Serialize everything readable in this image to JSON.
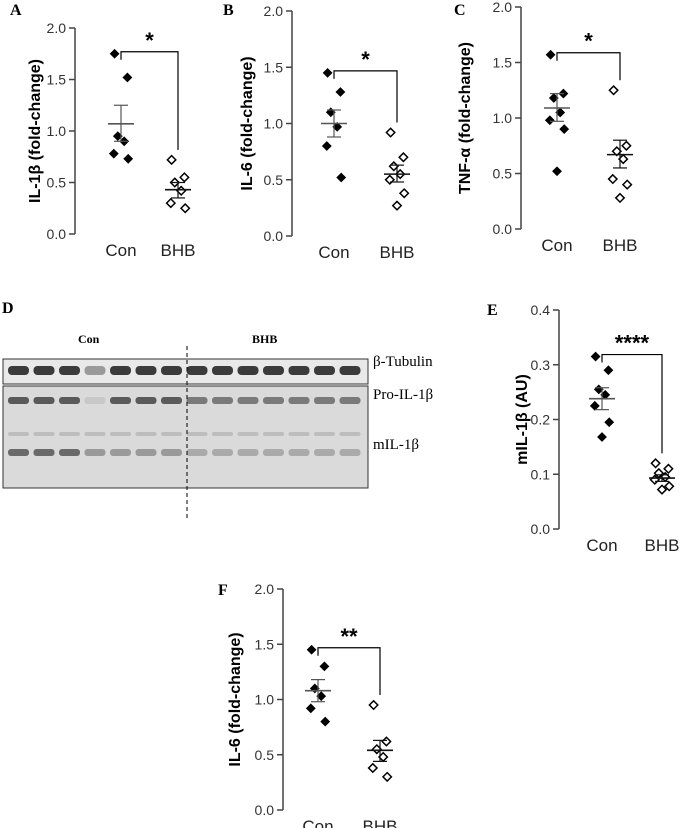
{
  "chart_data": [
    {
      "panel": "A",
      "type": "scatter",
      "ylabel": "IL-1β (fold-change)",
      "ylim": [
        0,
        2.0
      ],
      "yticks": [
        "0.0",
        "0.5",
        "1.0",
        "1.5",
        "2.0"
      ],
      "categories": [
        "Con",
        "BHB"
      ],
      "significance": "*",
      "series": [
        {
          "values": [
            1.75,
            1.52,
            0.95,
            0.9,
            0.78,
            0.73
          ],
          "mean": 1.07,
          "sem_low": 0.9,
          "sem_high": 1.25,
          "marker": "filled-diamond"
        },
        {
          "values": [
            0.72,
            0.55,
            0.5,
            0.42,
            0.3,
            0.25
          ],
          "mean": 0.43,
          "sem_low": 0.35,
          "sem_high": 0.5,
          "marker": "open-diamond"
        }
      ]
    },
    {
      "panel": "B",
      "type": "scatter",
      "ylabel": "IL-6 (fold-change)",
      "ylim": [
        0,
        2.0
      ],
      "yticks": [
        "0.0",
        "0.5",
        "1.0",
        "1.5",
        "2.0"
      ],
      "categories": [
        "Con",
        "BHB"
      ],
      "significance": "*",
      "series": [
        {
          "values": [
            1.45,
            1.28,
            1.1,
            0.97,
            0.8,
            0.52
          ],
          "mean": 1.0,
          "sem_low": 0.88,
          "sem_high": 1.12,
          "marker": "filled-diamond"
        },
        {
          "values": [
            0.92,
            0.7,
            0.62,
            0.55,
            0.5,
            0.38,
            0.27
          ],
          "mean": 0.55,
          "sem_low": 0.48,
          "sem_high": 0.63,
          "marker": "open-diamond"
        }
      ]
    },
    {
      "panel": "C",
      "type": "scatter",
      "ylabel": "TNF-α (fold-change)",
      "ylim": [
        0,
        2.0
      ],
      "yticks": [
        "0.0",
        "0.5",
        "1.0",
        "1.5",
        "2.0"
      ],
      "categories": [
        "Con",
        "BHB"
      ],
      "significance": "*",
      "series": [
        {
          "values": [
            1.57,
            1.22,
            1.18,
            1.05,
            0.98,
            0.9,
            0.52
          ],
          "mean": 1.09,
          "sem_low": 0.97,
          "sem_high": 1.22,
          "marker": "filled-diamond"
        },
        {
          "values": [
            1.25,
            0.75,
            0.7,
            0.63,
            0.45,
            0.4,
            0.28
          ],
          "mean": 0.67,
          "sem_low": 0.55,
          "sem_high": 0.8,
          "marker": "open-diamond"
        }
      ]
    },
    {
      "panel": "E",
      "type": "scatter",
      "ylabel": "mIL-1β (AU)",
      "ylim": [
        0,
        0.4
      ],
      "yticks": [
        "0.0",
        "0.1",
        "0.2",
        "0.3",
        "0.4"
      ],
      "categories": [
        "Con",
        "BHB"
      ],
      "significance": "****",
      "series": [
        {
          "values": [
            0.315,
            0.29,
            0.255,
            0.245,
            0.225,
            0.195,
            0.168
          ],
          "mean": 0.238,
          "sem_low": 0.218,
          "sem_high": 0.258,
          "marker": "filled-diamond"
        },
        {
          "values": [
            0.12,
            0.11,
            0.102,
            0.095,
            0.09,
            0.078,
            0.072
          ],
          "mean": 0.093,
          "sem_low": 0.087,
          "sem_high": 0.099,
          "marker": "open-diamond"
        }
      ]
    },
    {
      "panel": "F",
      "type": "scatter",
      "ylabel": "IL-6 (fold-change)",
      "ylim": [
        0,
        2.0
      ],
      "yticks": [
        "0.0",
        "0.5",
        "1.0",
        "1.5",
        "2.0"
      ],
      "categories": [
        "Con",
        "BHB"
      ],
      "significance": "**",
      "series": [
        {
          "values": [
            1.45,
            1.3,
            1.1,
            1.03,
            0.92,
            0.8
          ],
          "mean": 1.08,
          "sem_low": 0.98,
          "sem_high": 1.18,
          "marker": "filled-diamond"
        },
        {
          "values": [
            0.95,
            0.62,
            0.55,
            0.48,
            0.38,
            0.3
          ],
          "mean": 0.54,
          "sem_low": 0.44,
          "sem_high": 0.63,
          "marker": "open-diamond"
        }
      ]
    }
  ],
  "blot": {
    "panel": "D",
    "groups": [
      "Con",
      "BHB"
    ],
    "bands": [
      "β-Tubulin",
      "Pro-IL-1β",
      "mIL-1β"
    ]
  }
}
